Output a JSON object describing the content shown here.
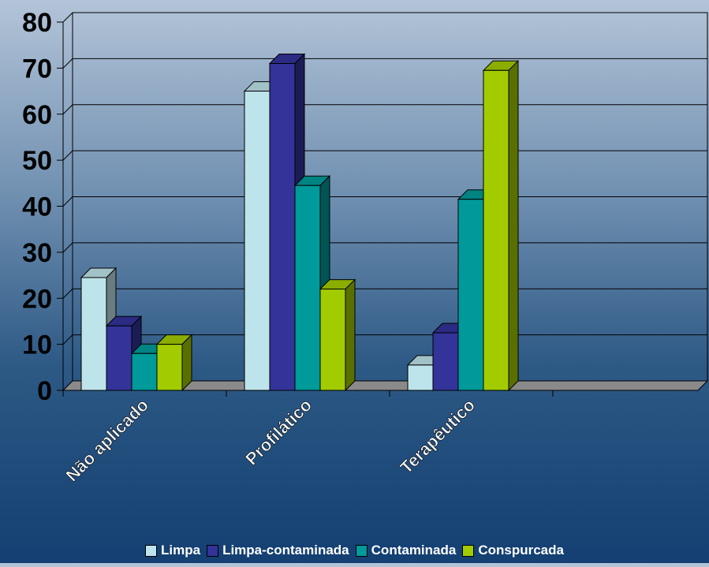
{
  "chart_data": {
    "type": "bar",
    "title": "",
    "xlabel": "",
    "ylabel": "",
    "categories": [
      "Não aplicado",
      "Profilático",
      "Terapêutico"
    ],
    "series": [
      {
        "name": "Limpa",
        "values": [
          24.5,
          65,
          5.5
        ],
        "color": "#bde4ea"
      },
      {
        "name": "Limpa-contaminada",
        "values": [
          14,
          71,
          12.5
        ],
        "color": "#33339a"
      },
      {
        "name": "Contaminada",
        "values": [
          8,
          44.5,
          41.5
        ],
        "color": "#009a9a"
      },
      {
        "name": "Conspurcada",
        "values": [
          10,
          22,
          69.5
        ],
        "color": "#a2cc00"
      }
    ],
    "yticks": [
      0,
      10,
      20,
      30,
      40,
      50,
      60,
      70,
      80
    ],
    "ylim": [
      0,
      80
    ],
    "grid": true,
    "legend_position": "bottom",
    "style": "3d-bar"
  }
}
